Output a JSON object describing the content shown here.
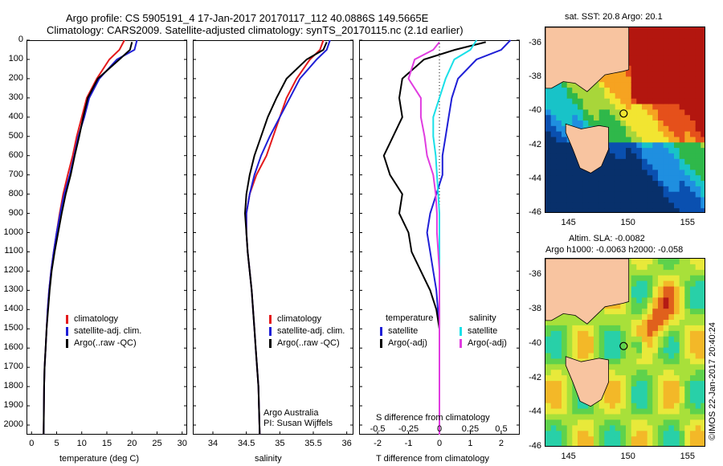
{
  "header": {
    "line1": "Argo profile: CS 5905191_4 17-Jan-2017 20170117_112 40.0886S 149.5665E",
    "line2": "Climatology: CARS2009. Satellite-adjusted climatology: synTS_20170115.nc (2.1d earlier)"
  },
  "colors": {
    "climatology": "#e41a1c",
    "satellite": "#1f1fd6",
    "argo": "#000000",
    "sal_sat": "#19e0e8",
    "sal_argo": "#e03ce0"
  },
  "chart_data": [
    {
      "type": "line",
      "name": "temperature-profile",
      "xlabel": "temperature (deg C)",
      "ylabel": "",
      "xlim": [
        -1,
        31
      ],
      "ylim": [
        2050,
        0
      ],
      "xticks": [
        0,
        5,
        10,
        15,
        20,
        25,
        30
      ],
      "yticks": [
        0,
        100,
        200,
        300,
        400,
        500,
        600,
        700,
        800,
        900,
        1000,
        1100,
        1200,
        1300,
        1400,
        1500,
        1600,
        1700,
        1800,
        1900,
        2000
      ],
      "legend": {
        "position": "lower-middle",
        "entries": [
          "climatology",
          "satellite-adj. clim.",
          "Argo(..raw -QC)"
        ]
      },
      "series": [
        {
          "key": "climatology",
          "x": [
            18.5,
            17.5,
            15.5,
            13.0,
            11.0,
            10.0,
            9.0,
            8.2,
            7.2,
            6.3,
            5.6,
            5.0,
            4.4,
            3.9,
            3.5,
            3.2,
            3.0,
            2.8,
            2.6,
            2.5,
            2.4
          ],
          "y": [
            0,
            50,
            100,
            200,
            300,
            400,
            500,
            600,
            700,
            800,
            900,
            1000,
            1100,
            1200,
            1300,
            1400,
            1500,
            1600,
            1700,
            1800,
            2050
          ]
        },
        {
          "key": "satellite",
          "x": [
            21.0,
            20.5,
            17.0,
            13.5,
            11.5,
            10.5,
            9.3,
            8.5,
            7.6,
            6.5,
            5.7,
            5.0,
            4.4,
            3.9,
            3.5,
            3.2,
            3.0,
            2.8,
            2.6,
            2.5,
            2.4
          ],
          "y": [
            0,
            50,
            100,
            200,
            300,
            400,
            500,
            600,
            700,
            800,
            900,
            1000,
            1100,
            1200,
            1300,
            1400,
            1500,
            1600,
            1700,
            1800,
            2050
          ]
        },
        {
          "key": "argo",
          "x": [
            20.0,
            19.6,
            17.5,
            13.2,
            11.2,
            10.3,
            9.5,
            8.6,
            7.8,
            6.8,
            6.0,
            5.3,
            4.6,
            4.0,
            3.6,
            3.3,
            3.0,
            2.8,
            2.6,
            2.5,
            2.4
          ],
          "y": [
            10,
            50,
            100,
            200,
            300,
            400,
            500,
            600,
            700,
            800,
            900,
            1000,
            1100,
            1200,
            1300,
            1400,
            1500,
            1600,
            1700,
            1800,
            2050
          ]
        }
      ]
    },
    {
      "type": "line",
      "name": "salinity-profile",
      "xlabel": "salinity",
      "ylabel": "",
      "xlim": [
        33.7,
        36.1
      ],
      "ylim": [
        2050,
        0
      ],
      "xticks": [
        34,
        34.5,
        35,
        35.5,
        36
      ],
      "xtick_labels": [
        "34",
        "34.5",
        "35",
        "35.5",
        "36"
      ],
      "legend": {
        "position": "lower-middle",
        "entries": [
          "climatology",
          "satellite-adj. clim.",
          "Argo(..raw -QC)"
        ]
      },
      "annotations": [
        "Argo Australia",
        "PI: Susan Wijffels"
      ],
      "series": [
        {
          "key": "climatology",
          "x": [
            35.65,
            35.6,
            35.45,
            35.25,
            35.1,
            35.0,
            34.9,
            34.8,
            34.65,
            34.55,
            34.5,
            34.5,
            34.52,
            34.55,
            34.58,
            34.6,
            34.62,
            34.64,
            34.66,
            34.68,
            34.7
          ],
          "y": [
            0,
            50,
            100,
            200,
            300,
            400,
            500,
            600,
            700,
            800,
            900,
            1000,
            1100,
            1200,
            1300,
            1400,
            1500,
            1600,
            1700,
            1800,
            2050
          ]
        },
        {
          "key": "satellite",
          "x": [
            35.75,
            35.7,
            35.55,
            35.3,
            35.15,
            35.0,
            34.85,
            34.72,
            34.62,
            34.55,
            34.5,
            34.5,
            34.52,
            34.55,
            34.58,
            34.6,
            34.62,
            34.64,
            34.66,
            34.68,
            34.7
          ],
          "y": [
            0,
            50,
            100,
            200,
            300,
            400,
            500,
            600,
            700,
            800,
            900,
            1000,
            1100,
            1200,
            1300,
            1400,
            1500,
            1600,
            1700,
            1800,
            2050
          ]
        },
        {
          "key": "argo",
          "x": [
            35.7,
            35.65,
            35.4,
            35.1,
            34.95,
            34.82,
            34.72,
            34.62,
            34.55,
            34.5,
            34.48,
            34.5,
            34.52,
            34.55,
            34.58,
            34.6,
            34.62,
            34.64,
            34.66,
            34.68,
            34.7
          ],
          "y": [
            10,
            50,
            100,
            200,
            300,
            400,
            500,
            600,
            700,
            800,
            900,
            1000,
            1100,
            1200,
            1300,
            1400,
            1500,
            1600,
            1700,
            1800,
            2050
          ]
        }
      ]
    },
    {
      "type": "line",
      "name": "difference-profile",
      "xlabel": "T difference from climatology",
      "top_label": "S difference from climatology",
      "xlim": [
        -2.6,
        2.6
      ],
      "ylim": [
        2050,
        0
      ],
      "xticks": [
        -2,
        -1,
        0,
        1,
        2
      ],
      "secondary_xticks": [
        -0.5,
        -0.25,
        0,
        0.25,
        0.5
      ],
      "secondary_xtick_labels": [
        "-0.5",
        "-0.25",
        "0",
        "0.25",
        "0.5"
      ],
      "secondary_scale": 0.25,
      "zero_line": true,
      "legend": {
        "position": "lower-middle",
        "groups": [
          {
            "title": "temperature",
            "entries": [
              "satellite",
              "Argo(-adj)"
            ]
          },
          {
            "title": "salinity",
            "entries": [
              "satellite",
              "Argo(-adj)"
            ]
          }
        ]
      },
      "series": [
        {
          "key": "T-satellite",
          "color_key": "satellite",
          "x": [
            2.3,
            2.0,
            1.2,
            0.6,
            0.4,
            0.3,
            0.2,
            0.1,
            0.1,
            -0.1,
            -0.3,
            -0.4,
            -0.3,
            -0.2,
            -0.1,
            -0.05,
            0,
            0,
            0,
            0,
            0
          ],
          "y": [
            0,
            50,
            100,
            200,
            300,
            400,
            500,
            600,
            700,
            800,
            900,
            1000,
            1100,
            1200,
            1300,
            1400,
            1500,
            1600,
            1700,
            1800,
            2050
          ]
        },
        {
          "key": "T-argo",
          "color_key": "argo",
          "x": [
            1.5,
            0.5,
            -0.5,
            -1.2,
            -1.3,
            -1.2,
            -1.5,
            -1.8,
            -1.6,
            -1.2,
            -1.3,
            -1.0,
            -0.9,
            -0.6,
            -0.3,
            -0.1,
            0,
            0,
            0,
            0,
            0
          ],
          "y": [
            10,
            50,
            100,
            200,
            300,
            400,
            500,
            600,
            700,
            800,
            900,
            1000,
            1100,
            1200,
            1300,
            1400,
            1500,
            1600,
            1700,
            1800,
            2050
          ]
        },
        {
          "key": "S-satellite",
          "color_key": "sal_sat",
          "x": [
            0.3,
            0.25,
            0.12,
            0.05,
            0.0,
            -0.05,
            -0.05,
            -0.03,
            -0.02,
            -0.01,
            0,
            0,
            0,
            0,
            0,
            0,
            0,
            0,
            0,
            0,
            0
          ],
          "y": [
            0,
            50,
            100,
            200,
            300,
            400,
            500,
            600,
            700,
            800,
            900,
            1000,
            1100,
            1200,
            1300,
            1400,
            1500,
            1600,
            1700,
            1800,
            2050
          ]
        },
        {
          "key": "S-argo",
          "color_key": "sal_argo",
          "x": [
            0.0,
            -0.05,
            -0.2,
            -0.25,
            -0.15,
            -0.15,
            -0.12,
            -0.1,
            -0.05,
            -0.03,
            -0.02,
            -0.02,
            -0.01,
            0,
            0,
            0,
            0,
            0,
            0,
            0,
            0
          ],
          "y": [
            10,
            50,
            100,
            200,
            300,
            400,
            500,
            600,
            700,
            800,
            900,
            1000,
            1100,
            1200,
            1300,
            1400,
            1500,
            1600,
            1700,
            1800,
            2050
          ]
        }
      ]
    },
    {
      "type": "heatmap",
      "name": "sst-map",
      "title": "sat. SST: 20.8 Argo: 20.1",
      "xlim": [
        143,
        156.5
      ],
      "ylim": [
        -46,
        -35
      ],
      "xticks": [
        145,
        150,
        155
      ],
      "yticks": [
        -36,
        -38,
        -40,
        -42,
        -44,
        -46
      ],
      "float_position": [
        149.5665,
        -40.0886
      ]
    },
    {
      "type": "heatmap",
      "name": "sla-map",
      "title": "Altim. SLA: -0.0082",
      "subtitle": "Argo h1000: -0.0063 h2000: -0.058",
      "xlim": [
        143,
        156.5
      ],
      "ylim": [
        -46,
        -35
      ],
      "xticks": [
        145,
        150,
        155
      ],
      "yticks": [
        -36,
        -38,
        -40,
        -42,
        -44,
        -46
      ],
      "float_position": [
        149.5665,
        -40.0886
      ]
    }
  ],
  "credit": "©IMOS 22-Jan-2017 20:40:24"
}
